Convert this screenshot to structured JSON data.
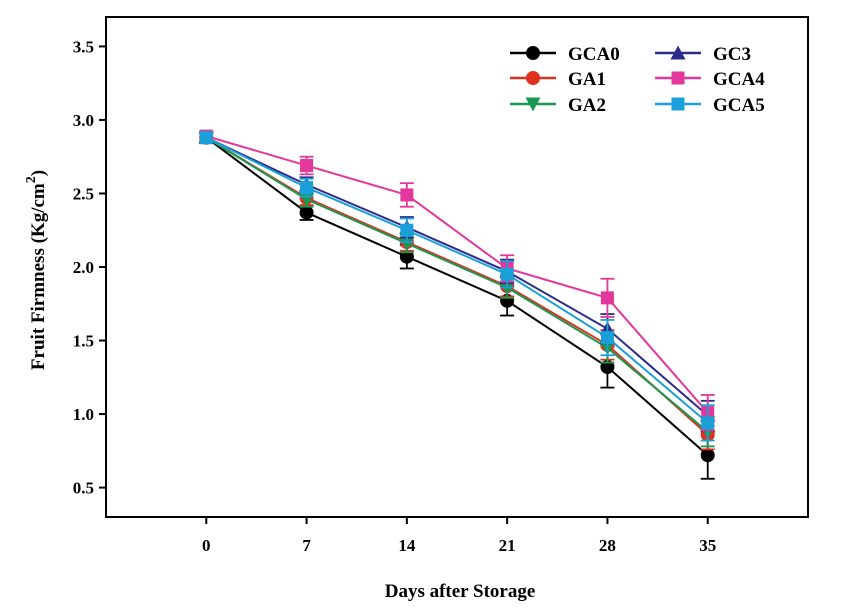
{
  "chart_data": {
    "type": "line",
    "title": "",
    "xlabel": "Days after Storage",
    "ylabel": {
      "main": "Fruit Firmness (Kg/cm",
      "superscript": "2",
      "close": ")"
    },
    "x": [
      0,
      7,
      14,
      21,
      28,
      35
    ],
    "x_ticks": [
      "0",
      "7",
      "14",
      "21",
      "28",
      "35"
    ],
    "xlim": [
      -7,
      42
    ],
    "ylim": [
      0.3,
      3.7
    ],
    "y_ticks": [
      "0.5",
      "1.0",
      "1.5",
      "2.0",
      "2.5",
      "3.0",
      "3.5"
    ],
    "y_tick_values": [
      0.5,
      1.0,
      1.5,
      2.0,
      2.5,
      3.0,
      3.5
    ],
    "grid": false,
    "legend_position": "top-right",
    "series": [
      {
        "name": "GCA0",
        "color": "#000000",
        "marker": "circle",
        "values": [
          2.88,
          2.37,
          2.07,
          1.77,
          1.32,
          0.72
        ],
        "errors": [
          0.03,
          0.05,
          0.08,
          0.1,
          0.14,
          0.16
        ]
      },
      {
        "name": "GA1",
        "color": "#e0301e",
        "marker": "circle",
        "values": [
          2.88,
          2.47,
          2.17,
          1.87,
          1.47,
          0.86
        ],
        "errors": [
          0.03,
          0.05,
          0.06,
          0.07,
          0.1,
          0.1
        ]
      },
      {
        "name": "GA2",
        "color": "#1a9850",
        "marker": "triangle-down",
        "values": [
          2.88,
          2.46,
          2.16,
          1.86,
          1.45,
          0.88
        ],
        "errors": [
          0.03,
          0.05,
          0.06,
          0.07,
          0.1,
          0.1
        ]
      },
      {
        "name": "GC3",
        "color": "#2b2b8c",
        "marker": "triangle-up",
        "values": [
          2.88,
          2.56,
          2.27,
          1.97,
          1.58,
          0.99
        ],
        "errors": [
          0.03,
          0.05,
          0.07,
          0.08,
          0.1,
          0.1
        ]
      },
      {
        "name": "GCA4",
        "color": "#e4379b",
        "marker": "square",
        "values": [
          2.89,
          2.69,
          2.49,
          1.99,
          1.79,
          1.01
        ],
        "errors": [
          0.03,
          0.06,
          0.08,
          0.09,
          0.13,
          0.12
        ]
      },
      {
        "name": "GCA5",
        "color": "#1aa0d8",
        "marker": "square",
        "values": [
          2.88,
          2.54,
          2.25,
          1.95,
          1.52,
          0.94
        ],
        "errors": [
          0.03,
          0.06,
          0.08,
          0.09,
          0.12,
          0.12
        ]
      }
    ]
  }
}
